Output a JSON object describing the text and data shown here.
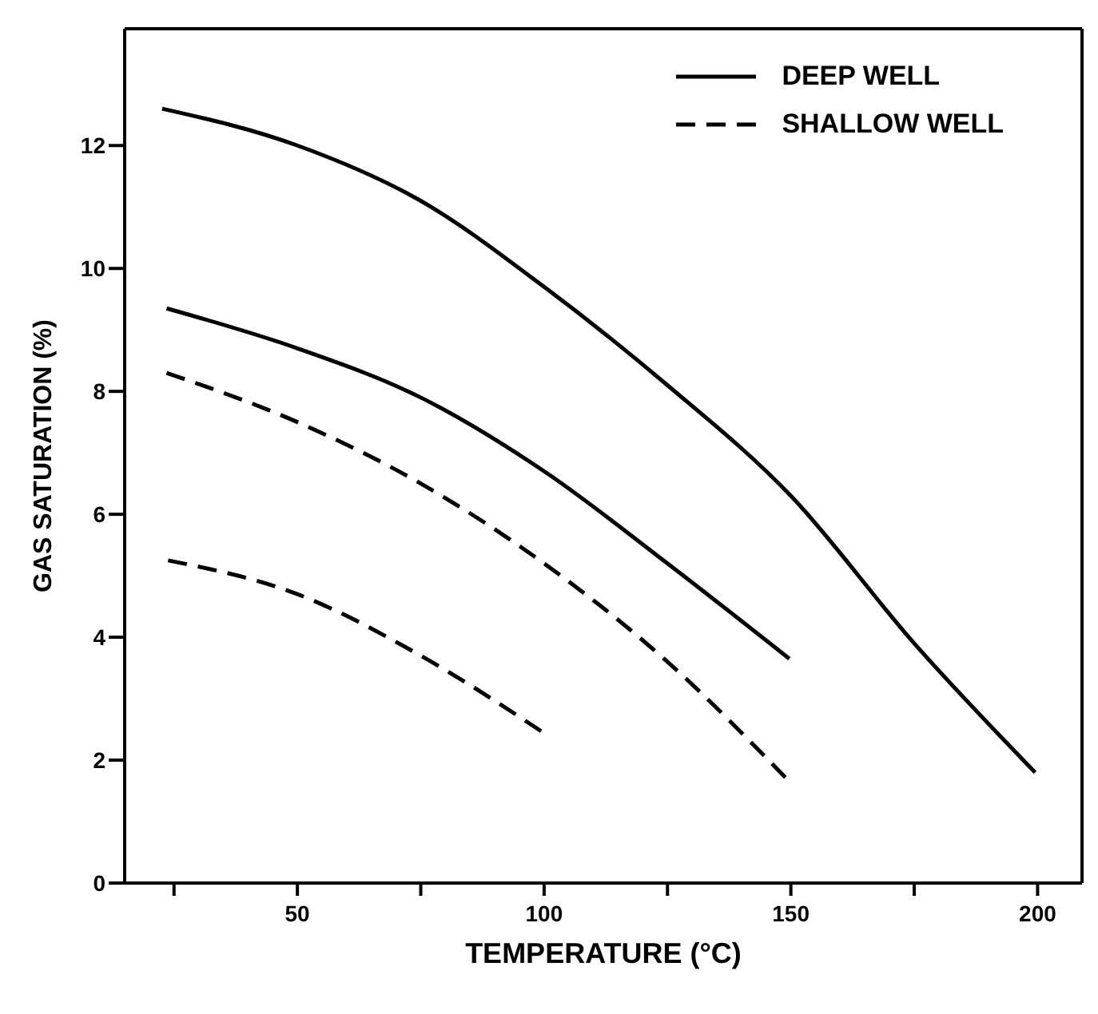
{
  "chart_data": {
    "type": "line",
    "xlabel": "TEMPERATURE (°C)",
    "ylabel": "GAS SATURATION (%)",
    "xlim": [
      15,
      209
    ],
    "ylim": [
      0,
      13.9
    ],
    "xticks": [
      {
        "value": 25,
        "label": null
      },
      50,
      {
        "value": 75,
        "label": null
      },
      100,
      {
        "value": 125,
        "label": null
      },
      150,
      {
        "value": 175,
        "label": null
      },
      200
    ],
    "yticks": [
      0,
      2,
      4,
      6,
      8,
      10,
      12
    ],
    "legend": "top right",
    "marker": "none",
    "series": [
      {
        "name": "DEEP WELL",
        "color": "#000000",
        "line_style": "solid",
        "x": [
          22.6,
          50,
          75,
          100,
          125,
          150,
          175,
          199.5
        ],
        "values": [
          12.6,
          12.0,
          11.1,
          9.7,
          8.1,
          6.3,
          3.9,
          1.8
        ]
      },
      {
        "color": "#000000",
        "line_style": "solid",
        "x": [
          23.5,
          50,
          75,
          100,
          125,
          149.7
        ],
        "values": [
          9.35,
          8.7,
          7.9,
          6.7,
          5.2,
          3.65
        ]
      },
      {
        "name": "SHALLOW WELL",
        "color": "#000000",
        "line_style": "dashed",
        "x": [
          23.5,
          50,
          75,
          100,
          125,
          149.7
        ],
        "values": [
          8.3,
          7.5,
          6.5,
          5.2,
          3.6,
          1.65
        ]
      },
      {
        "color": "#000000",
        "line_style": "dashed",
        "x": [
          23.8,
          50,
          75,
          99.8
        ],
        "values": [
          5.25,
          4.7,
          3.7,
          2.45
        ]
      }
    ]
  }
}
